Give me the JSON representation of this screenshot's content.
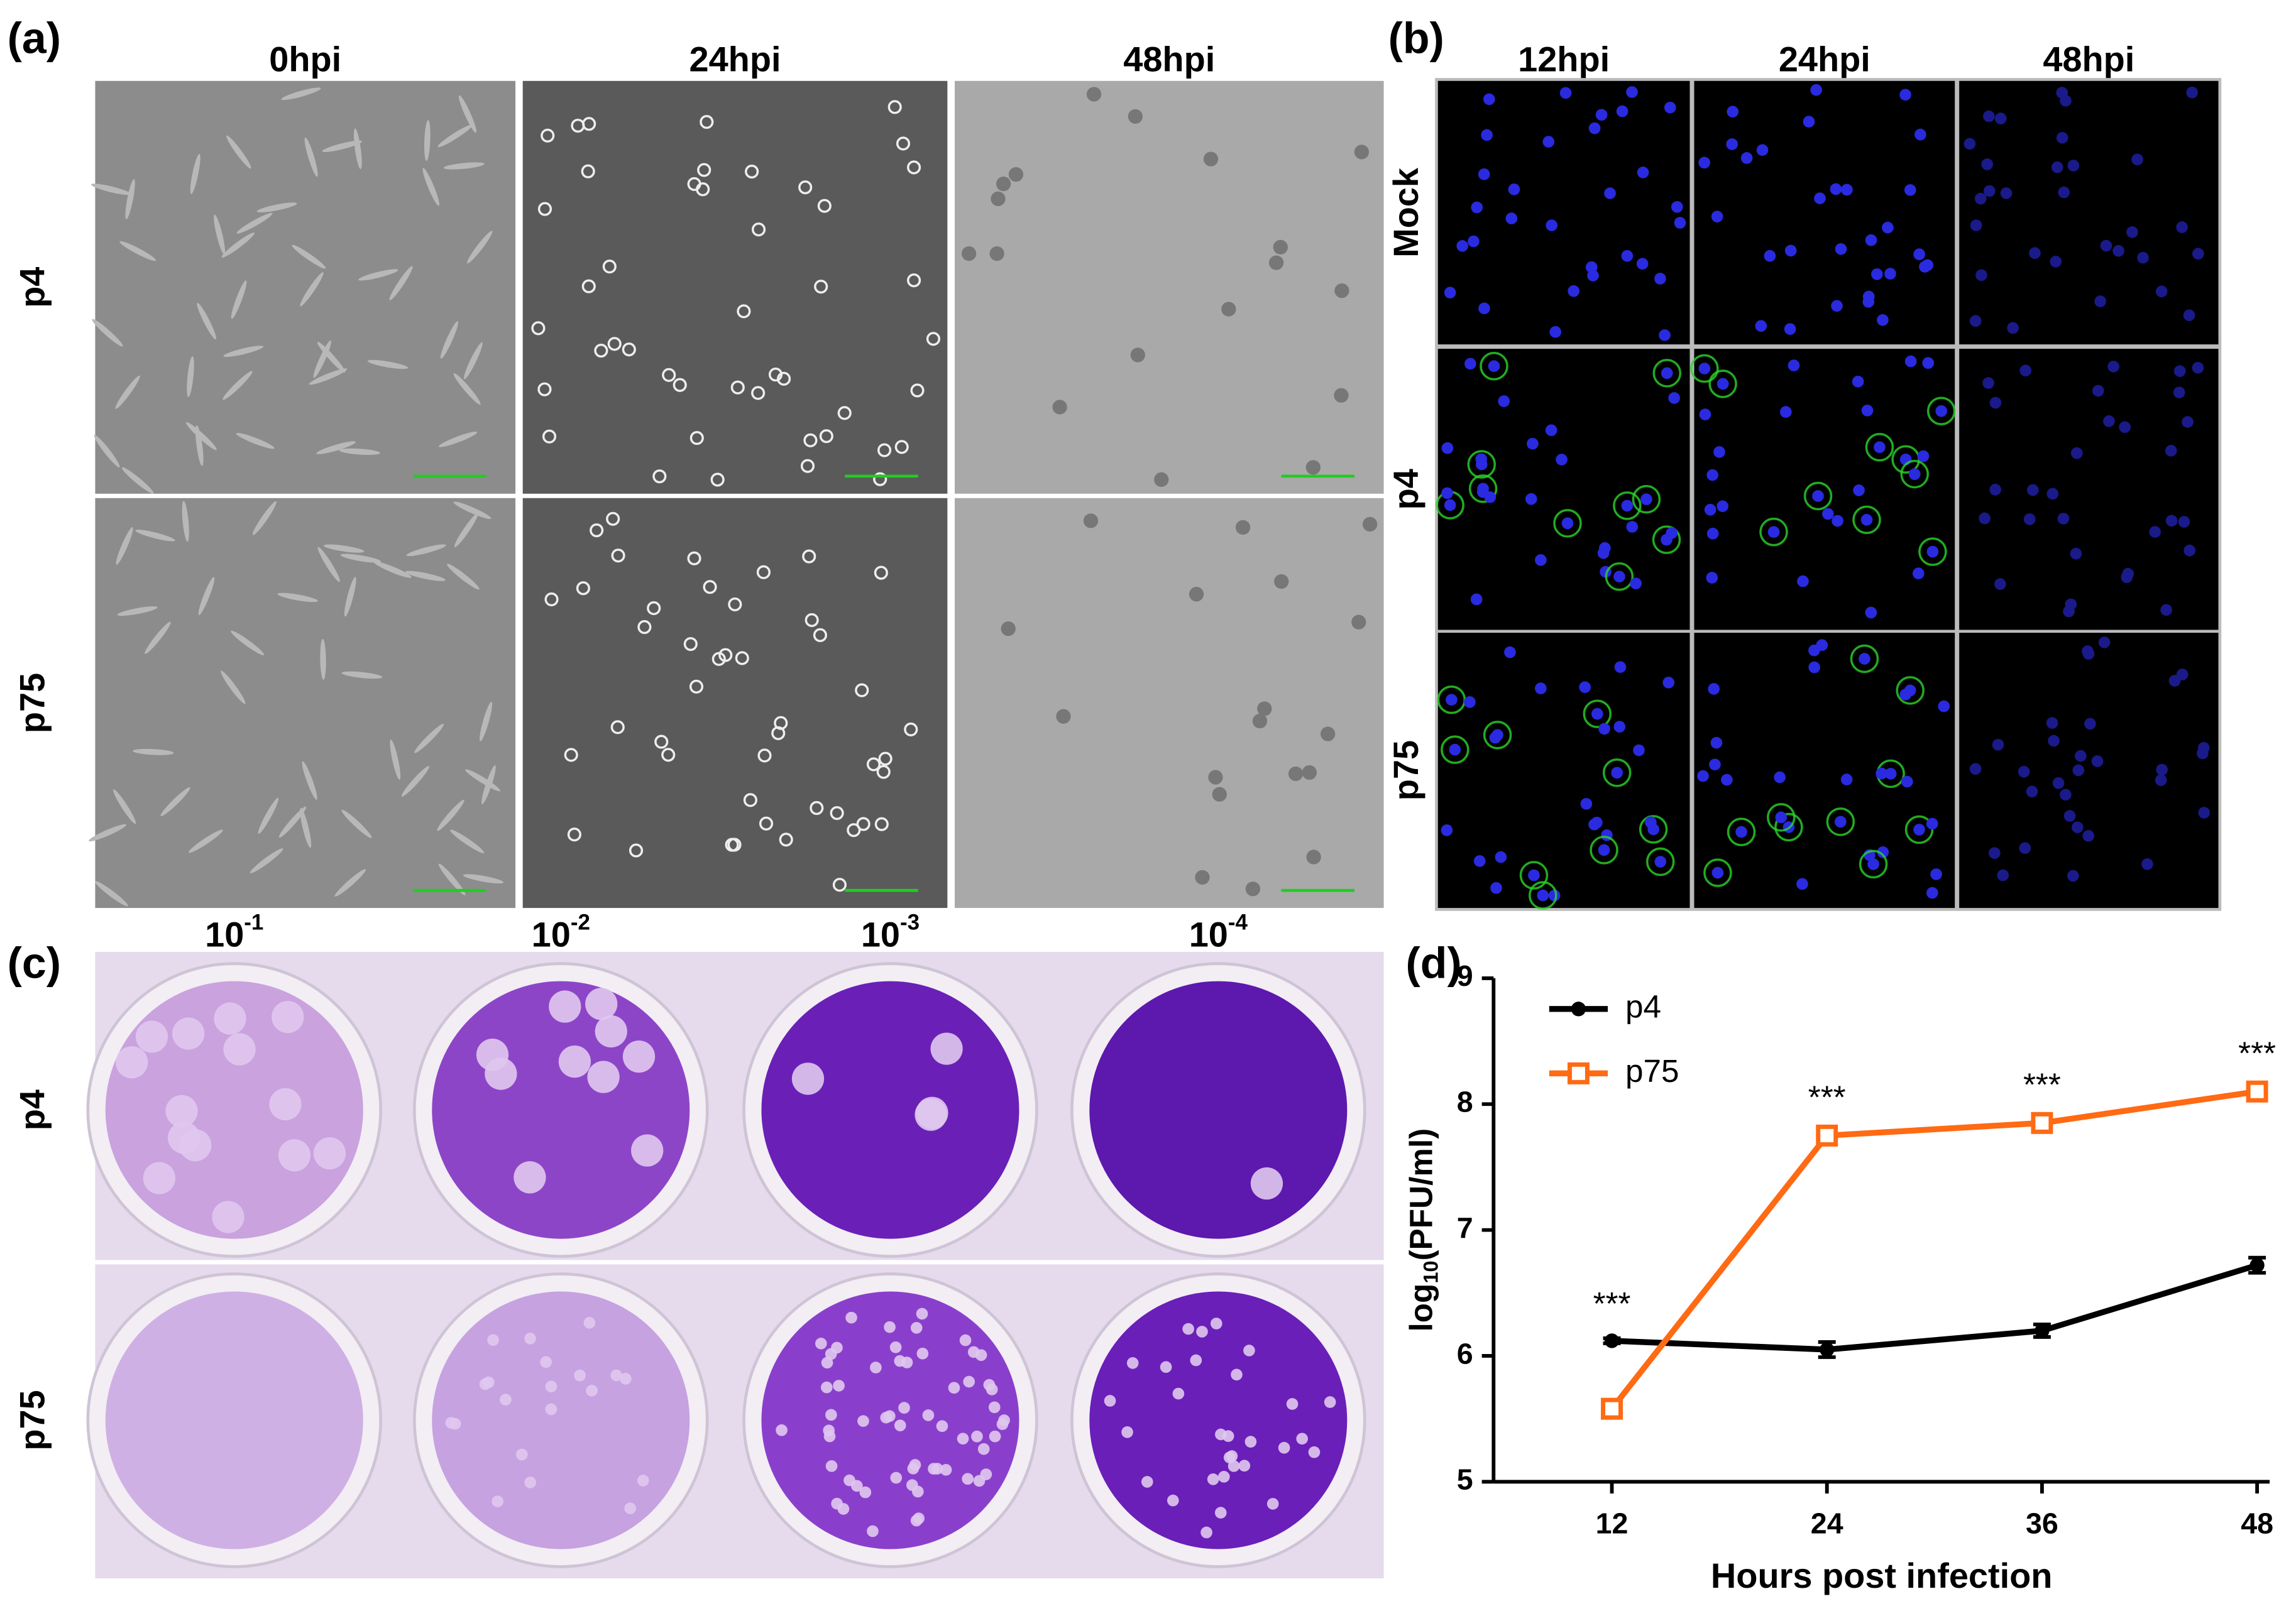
{
  "panels": {
    "a": {
      "label": "(a)",
      "columns": [
        "0hpi",
        "24hpi",
        "48hpi"
      ],
      "rows": [
        "p4",
        "p75"
      ]
    },
    "b": {
      "label": "(b)",
      "columns": [
        "12hpi",
        "24hpi",
        "48hpi"
      ],
      "rows": [
        "Mock",
        "p4",
        "p75"
      ]
    },
    "c": {
      "label": "(c)",
      "dilutions": [
        {
          "base": "10",
          "exp": "-1"
        },
        {
          "base": "10",
          "exp": "-2"
        },
        {
          "base": "10",
          "exp": "-3"
        },
        {
          "base": "10",
          "exp": "-4"
        }
      ],
      "rows": [
        "p4",
        "p75"
      ]
    }
  },
  "chart_data": {
    "type": "line",
    "panel_label": "(d)",
    "x_label": "Hours post infection",
    "y_label": {
      "prefix": "log",
      "sub": "10",
      "suffix": "(PFU/ml)"
    },
    "x": [
      12,
      24,
      36,
      48
    ],
    "series": [
      {
        "name": "p4",
        "color": "#000000",
        "values": [
          6.12,
          6.05,
          6.2,
          6.72
        ],
        "errors": [
          0.02,
          0.06,
          0.05,
          0.06
        ]
      },
      {
        "name": "p75",
        "color": "#ff6a13",
        "values": [
          5.58,
          7.75,
          7.85,
          8.1
        ],
        "errors": [
          0.03,
          0.03,
          0.03,
          0.03
        ]
      }
    ],
    "annotations": [
      {
        "x": 12,
        "text": "***"
      },
      {
        "x": 24,
        "text": "***"
      },
      {
        "x": 36,
        "text": "***"
      },
      {
        "x": 48,
        "text": "***"
      }
    ],
    "xlim": [
      5.4,
      48.7
    ],
    "xticks": [
      12,
      24,
      36,
      48
    ],
    "ylim": [
      5,
      9
    ],
    "yticks": [
      5,
      6,
      7,
      8,
      9
    ],
    "legend": "upper-left"
  }
}
